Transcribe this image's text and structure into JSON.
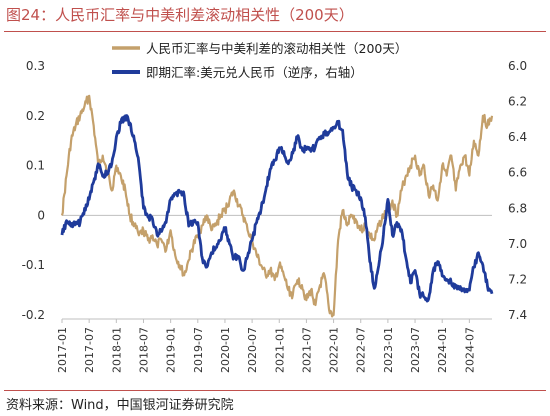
{
  "figure": {
    "title": "图24：人民币汇率与中美利差滚动相关性（200天）",
    "source": "资料来源：Wind，中国银河证券研究院"
  },
  "colors": {
    "title": "#c0504d",
    "series_corr": "#c4a06b",
    "series_fx": "#1f3b9b"
  },
  "chart_data": {
    "type": "line",
    "x_categories": [
      "2017-01",
      "2017-07",
      "2018-01",
      "2018-07",
      "2019-01",
      "2019-07",
      "2020-01",
      "2020-07",
      "2021-01",
      "2021-07",
      "2022-01",
      "2022-07",
      "2023-01",
      "2023-07",
      "2024-01",
      "2024-07"
    ],
    "y_left": {
      "range": [
        -0.2,
        0.3
      ],
      "ticks": [
        "0.3",
        "0.2",
        "0.1",
        "0",
        "-0.1",
        "-0.2"
      ],
      "tick_values": [
        0.3,
        0.2,
        0.1,
        0,
        -0.1,
        -0.2
      ]
    },
    "y_right": {
      "range": [
        6.0,
        7.4
      ],
      "inverted": true,
      "ticks": [
        "6.0",
        "6.2",
        "6.4",
        "6.6",
        "6.8",
        "7.0",
        "7.2",
        "7.4"
      ],
      "tick_values": [
        6.0,
        6.2,
        6.4,
        6.6,
        6.8,
        7.0,
        7.2,
        7.4
      ]
    },
    "legend_position": "top-right",
    "series": [
      {
        "name": "人民币汇率与中美利差的滚动相关性（200天）",
        "axis": "left",
        "points": [
          [
            "2017-01",
            0.0
          ],
          [
            "2017-02",
            0.08
          ],
          [
            "2017-03",
            0.15
          ],
          [
            "2017-04",
            0.18
          ],
          [
            "2017-05",
            0.2
          ],
          [
            "2017-06",
            0.22
          ],
          [
            "2017-07",
            0.24
          ],
          [
            "2017-08",
            0.18
          ],
          [
            "2017-09",
            0.1
          ],
          [
            "2017-10",
            0.12
          ],
          [
            "2017-11",
            0.09
          ],
          [
            "2017-12",
            0.05
          ],
          [
            "2018-01",
            0.1
          ],
          [
            "2018-02",
            0.08
          ],
          [
            "2018-03",
            0.05
          ],
          [
            "2018-04",
            0.0
          ],
          [
            "2018-05",
            -0.02
          ],
          [
            "2018-06",
            -0.04
          ],
          [
            "2018-07",
            -0.03
          ],
          [
            "2018-08",
            -0.05
          ],
          [
            "2018-09",
            -0.04
          ],
          [
            "2018-10",
            -0.06
          ],
          [
            "2018-11",
            -0.05
          ],
          [
            "2018-12",
            -0.07
          ],
          [
            "2019-01",
            -0.03
          ],
          [
            "2019-02",
            -0.08
          ],
          [
            "2019-03",
            -0.1
          ],
          [
            "2019-04",
            -0.12
          ],
          [
            "2019-05",
            -0.09
          ],
          [
            "2019-06",
            -0.06
          ],
          [
            "2019-07",
            -0.04
          ],
          [
            "2019-08",
            -0.02
          ],
          [
            "2019-09",
            0.0
          ],
          [
            "2019-10",
            -0.03
          ],
          [
            "2019-11",
            -0.02
          ],
          [
            "2019-12",
            0.0
          ],
          [
            "2020-01",
            0.01
          ],
          [
            "2020-02",
            0.03
          ],
          [
            "2020-03",
            0.05
          ],
          [
            "2020-04",
            0.02
          ],
          [
            "2020-05",
            0.0
          ],
          [
            "2020-06",
            -0.03
          ],
          [
            "2020-07",
            -0.05
          ],
          [
            "2020-08",
            -0.08
          ],
          [
            "2020-09",
            -0.1
          ],
          [
            "2020-10",
            -0.12
          ],
          [
            "2020-11",
            -0.11
          ],
          [
            "2020-12",
            -0.13
          ],
          [
            "2021-01",
            -0.1
          ],
          [
            "2021-02",
            -0.12
          ],
          [
            "2021-03",
            -0.15
          ],
          [
            "2021-04",
            -0.16
          ],
          [
            "2021-05",
            -0.13
          ],
          [
            "2021-06",
            -0.14
          ],
          [
            "2021-07",
            -0.17
          ],
          [
            "2021-08",
            -0.15
          ],
          [
            "2021-09",
            -0.18
          ],
          [
            "2021-10",
            -0.14
          ],
          [
            "2021-11",
            -0.12
          ],
          [
            "2021-12",
            -0.19
          ],
          [
            "2022-01",
            -0.2
          ],
          [
            "2022-02",
            -0.05
          ],
          [
            "2022-03",
            0.01
          ],
          [
            "2022-04",
            -0.02
          ],
          [
            "2022-05",
            0.0
          ],
          [
            "2022-06",
            -0.01
          ],
          [
            "2022-07",
            -0.03
          ],
          [
            "2022-08",
            -0.02
          ],
          [
            "2022-09",
            -0.04
          ],
          [
            "2022-10",
            -0.05
          ],
          [
            "2022-11",
            -0.02
          ],
          [
            "2022-12",
            0.0
          ],
          [
            "2023-01",
            0.01
          ],
          [
            "2023-02",
            0.03
          ],
          [
            "2023-03",
            0.0
          ],
          [
            "2023-04",
            0.05
          ],
          [
            "2023-05",
            0.08
          ],
          [
            "2023-06",
            0.1
          ],
          [
            "2023-07",
            0.12
          ],
          [
            "2023-08",
            0.08
          ],
          [
            "2023-09",
            0.1
          ],
          [
            "2023-10",
            0.04
          ],
          [
            "2023-11",
            0.06
          ],
          [
            "2023-12",
            0.03
          ],
          [
            "2024-01",
            0.1
          ],
          [
            "2024-02",
            0.08
          ],
          [
            "2024-03",
            0.12
          ],
          [
            "2024-04",
            0.05
          ],
          [
            "2024-05",
            0.1
          ],
          [
            "2024-06",
            0.12
          ],
          [
            "2024-07",
            0.08
          ],
          [
            "2024-08",
            0.15
          ],
          [
            "2024-09",
            0.12
          ],
          [
            "2024-10",
            0.2
          ],
          [
            "2024-11",
            0.18
          ],
          [
            "2024-12",
            0.2
          ]
        ]
      },
      {
        "name": "即期汇率:美元兑人民币（逆序，右轴）",
        "axis": "right",
        "points": [
          [
            "2017-01",
            6.95
          ],
          [
            "2017-02",
            6.87
          ],
          [
            "2017-03",
            6.9
          ],
          [
            "2017-04",
            6.89
          ],
          [
            "2017-05",
            6.88
          ],
          [
            "2017-06",
            6.8
          ],
          [
            "2017-07",
            6.75
          ],
          [
            "2017-08",
            6.65
          ],
          [
            "2017-09",
            6.55
          ],
          [
            "2017-10",
            6.62
          ],
          [
            "2017-11",
            6.6
          ],
          [
            "2017-12",
            6.55
          ],
          [
            "2018-01",
            6.4
          ],
          [
            "2018-02",
            6.32
          ],
          [
            "2018-03",
            6.28
          ],
          [
            "2018-04",
            6.32
          ],
          [
            "2018-05",
            6.42
          ],
          [
            "2018-06",
            6.55
          ],
          [
            "2018-07",
            6.8
          ],
          [
            "2018-08",
            6.85
          ],
          [
            "2018-09",
            6.86
          ],
          [
            "2018-10",
            6.95
          ],
          [
            "2018-11",
            6.93
          ],
          [
            "2018-12",
            6.88
          ],
          [
            "2019-01",
            6.75
          ],
          [
            "2019-02",
            6.72
          ],
          [
            "2019-03",
            6.71
          ],
          [
            "2019-04",
            6.73
          ],
          [
            "2019-05",
            6.9
          ],
          [
            "2019-06",
            6.87
          ],
          [
            "2019-07",
            6.88
          ],
          [
            "2019-08",
            7.08
          ],
          [
            "2019-09",
            7.13
          ],
          [
            "2019-10",
            7.05
          ],
          [
            "2019-11",
            7.02
          ],
          [
            "2019-12",
            6.98
          ],
          [
            "2020-01",
            6.91
          ],
          [
            "2020-02",
            7.0
          ],
          [
            "2020-03",
            7.08
          ],
          [
            "2020-04",
            7.07
          ],
          [
            "2020-05",
            7.15
          ],
          [
            "2020-06",
            7.07
          ],
          [
            "2020-07",
            6.98
          ],
          [
            "2020-08",
            6.88
          ],
          [
            "2020-09",
            6.8
          ],
          [
            "2020-10",
            6.7
          ],
          [
            "2020-11",
            6.58
          ],
          [
            "2020-12",
            6.53
          ],
          [
            "2021-01",
            6.46
          ],
          [
            "2021-02",
            6.48
          ],
          [
            "2021-03",
            6.55
          ],
          [
            "2021-04",
            6.49
          ],
          [
            "2021-05",
            6.4
          ],
          [
            "2021-06",
            6.46
          ],
          [
            "2021-07",
            6.47
          ],
          [
            "2021-08",
            6.48
          ],
          [
            "2021-09",
            6.45
          ],
          [
            "2021-10",
            6.4
          ],
          [
            "2021-11",
            6.38
          ],
          [
            "2021-12",
            6.37
          ],
          [
            "2022-01",
            6.35
          ],
          [
            "2022-02",
            6.32
          ],
          [
            "2022-03",
            6.36
          ],
          [
            "2022-04",
            6.6
          ],
          [
            "2022-05",
            6.68
          ],
          [
            "2022-06",
            6.7
          ],
          [
            "2022-07",
            6.74
          ],
          [
            "2022-08",
            6.85
          ],
          [
            "2022-09",
            7.1
          ],
          [
            "2022-10",
            7.25
          ],
          [
            "2022-11",
            7.12
          ],
          [
            "2022-12",
            6.95
          ],
          [
            "2023-01",
            6.75
          ],
          [
            "2023-02",
            6.95
          ],
          [
            "2023-03",
            6.88
          ],
          [
            "2023-04",
            6.92
          ],
          [
            "2023-05",
            7.08
          ],
          [
            "2023-06",
            7.22
          ],
          [
            "2023-07",
            7.15
          ],
          [
            "2023-08",
            7.28
          ],
          [
            "2023-09",
            7.3
          ],
          [
            "2023-10",
            7.31
          ],
          [
            "2023-11",
            7.15
          ],
          [
            "2023-12",
            7.1
          ],
          [
            "2024-01",
            7.18
          ],
          [
            "2024-02",
            7.2
          ],
          [
            "2024-03",
            7.22
          ],
          [
            "2024-04",
            7.24
          ],
          [
            "2024-05",
            7.24
          ],
          [
            "2024-06",
            7.27
          ],
          [
            "2024-07",
            7.26
          ],
          [
            "2024-08",
            7.13
          ],
          [
            "2024-09",
            7.05
          ],
          [
            "2024-10",
            7.12
          ],
          [
            "2024-11",
            7.24
          ],
          [
            "2024-12",
            7.28
          ]
        ]
      }
    ]
  }
}
